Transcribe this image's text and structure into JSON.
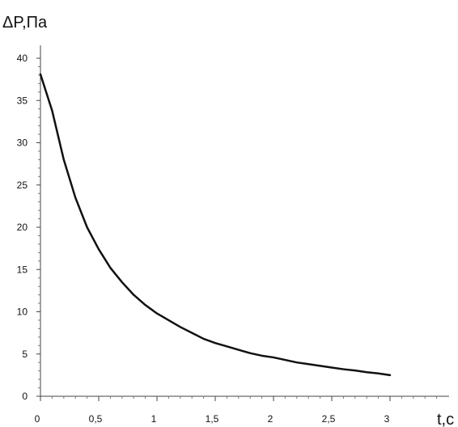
{
  "chart_data": {
    "type": "line",
    "ylabel": "ΔP,Па",
    "xlabel": "t,c",
    "xlim": [
      0,
      3.5
    ],
    "ylim": [
      0,
      40
    ],
    "x_ticks": [
      {
        "value": 0,
        "label": "0"
      },
      {
        "value": 0.5,
        "label": "0,5"
      },
      {
        "value": 1,
        "label": "1"
      },
      {
        "value": 1.5,
        "label": "1,5"
      },
      {
        "value": 2,
        "label": "2"
      },
      {
        "value": 2.5,
        "label": "2,5"
      },
      {
        "value": 3,
        "label": "3"
      }
    ],
    "y_ticks": [
      {
        "value": 0,
        "label": "0"
      },
      {
        "value": 5,
        "label": "5"
      },
      {
        "value": 10,
        "label": "10"
      },
      {
        "value": 15,
        "label": "15"
      },
      {
        "value": 20,
        "label": "20"
      },
      {
        "value": 25,
        "label": "25"
      },
      {
        "value": 30,
        "label": "30"
      },
      {
        "value": 35,
        "label": "35"
      },
      {
        "value": 40,
        "label": "40"
      }
    ],
    "grid": false,
    "series": [
      {
        "color": "#111111",
        "x": [
          0,
          0.1,
          0.2,
          0.3,
          0.4,
          0.5,
          0.6,
          0.7,
          0.8,
          0.9,
          1.0,
          1.1,
          1.2,
          1.3,
          1.4,
          1.5,
          1.6,
          1.7,
          1.8,
          1.9,
          2.0,
          2.1,
          2.2,
          2.3,
          2.4,
          2.5,
          2.6,
          2.7,
          2.8,
          2.9,
          3.0
        ],
        "y": [
          38.1,
          33.8,
          28.0,
          23.5,
          20.0,
          17.4,
          15.2,
          13.5,
          12.0,
          10.8,
          9.8,
          9.0,
          8.2,
          7.5,
          6.8,
          6.3,
          5.9,
          5.5,
          5.1,
          4.8,
          4.6,
          4.3,
          4.0,
          3.8,
          3.6,
          3.4,
          3.2,
          3.05,
          2.85,
          2.7,
          2.5
        ]
      }
    ]
  }
}
